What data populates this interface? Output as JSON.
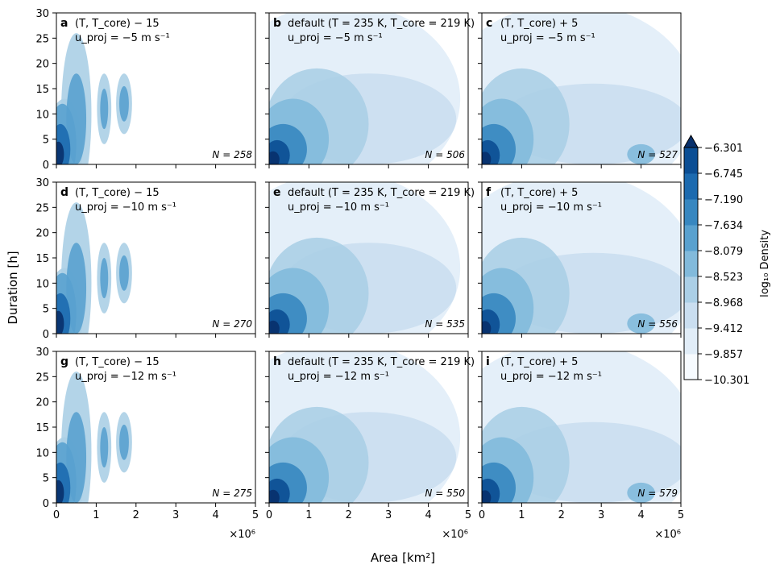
{
  "figure": {
    "xlabel": "Area [km²]",
    "ylabel": "Duration [h]",
    "x_multiplier": "×10⁶"
  },
  "colorbar": {
    "label": "log₁₀ Density",
    "ticks": [
      "−6.301",
      "−6.745",
      "−7.190",
      "−7.634",
      "−8.079",
      "−8.523",
      "−8.968",
      "−9.412",
      "−9.857",
      "−10.301"
    ],
    "colors": [
      "#f7fbff",
      "#e1edf8",
      "#cadef0",
      "#abcfe6",
      "#82badb",
      "#59a1cf",
      "#3787c0",
      "#1c6aaf",
      "#0b4e94",
      "#08306b"
    ]
  },
  "chart_data": {
    "type": "heatmap",
    "xlabel": "Area [km²]",
    "ylabel": "Duration [h]",
    "x_ticks": [
      "0",
      "1",
      "2",
      "3",
      "4",
      "5"
    ],
    "y_ticks": [
      "0",
      "5",
      "10",
      "15",
      "20",
      "25",
      "30"
    ],
    "xlim": [
      0,
      5000000
    ],
    "ylim": [
      0,
      30
    ],
    "colorbar_range": [
      -10.301,
      -6.301
    ],
    "panels": [
      {
        "letter": "a",
        "threshold": "(T, T_core) − 15",
        "u_proj": "u_proj = −5 m s⁻¹",
        "n_label": "N = 258",
        "n": 258
      },
      {
        "letter": "b",
        "threshold": "default (T = 235 K, T_core = 219 K)",
        "u_proj": "u_proj = −5 m s⁻¹",
        "n_label": "N = 506",
        "n": 506
      },
      {
        "letter": "c",
        "threshold": "(T, T_core) + 5",
        "u_proj": "u_proj = −5 m s⁻¹",
        "n_label": "N = 527",
        "n": 527
      },
      {
        "letter": "d",
        "threshold": "(T, T_core) − 15",
        "u_proj": "u_proj = −10 m s⁻¹",
        "n_label": "N = 270",
        "n": 270
      },
      {
        "letter": "e",
        "threshold": "default (T = 235 K, T_core = 219 K)",
        "u_proj": "u_proj = −10 m s⁻¹",
        "n_label": "N = 535",
        "n": 535
      },
      {
        "letter": "f",
        "threshold": "(T, T_core) + 5",
        "u_proj": "u_proj = −10 m s⁻¹",
        "n_label": "N = 556",
        "n": 556
      },
      {
        "letter": "g",
        "threshold": "(T, T_core) − 15",
        "u_proj": "u_proj = −12 m s⁻¹",
        "n_label": "N = 275",
        "n": 275
      },
      {
        "letter": "h",
        "threshold": "default (T = 235 K, T_core = 219 K)",
        "u_proj": "u_proj = −12 m s⁻¹",
        "n_label": "N = 550",
        "n": 550
      },
      {
        "letter": "i",
        "threshold": "(T, T_core) + 5",
        "u_proj": "u_proj = −12 m s⁻¹",
        "n_label": "N = 579",
        "n": 579
      }
    ]
  }
}
